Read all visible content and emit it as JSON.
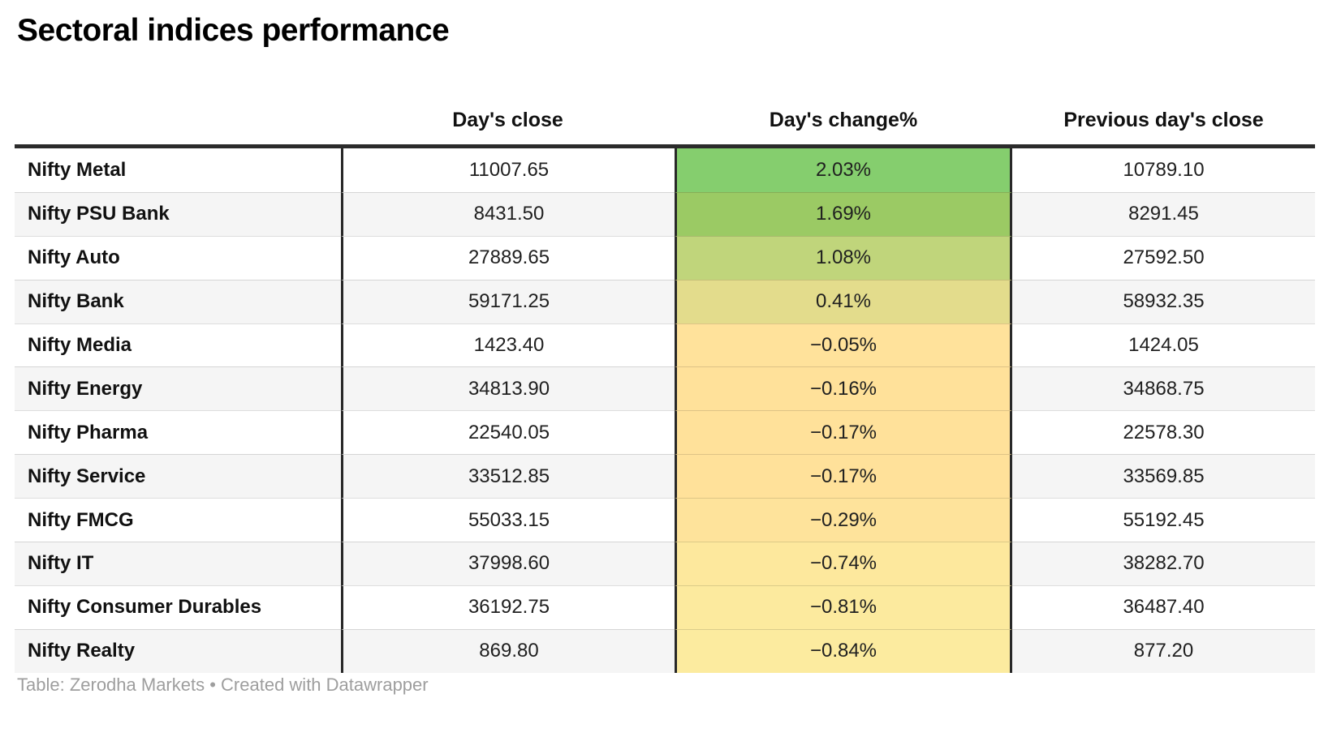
{
  "title": "Sectoral indices performance",
  "table": {
    "headers": {
      "index": "",
      "close": "Day's close",
      "change": "Day's change%",
      "prev_close": "Previous day's close"
    },
    "rows": [
      {
        "name": "Nifty Metal",
        "close": "11007.65",
        "change": "2.03%",
        "prev_close": "10789.10",
        "change_color": "#85ce6e"
      },
      {
        "name": "Nifty PSU Bank",
        "close": "8431.50",
        "change": "1.69%",
        "prev_close": "8291.45",
        "change_color": "#9bca64"
      },
      {
        "name": "Nifty Auto",
        "close": "27889.65",
        "change": "1.08%",
        "prev_close": "27592.50",
        "change_color": "#c0d57b"
      },
      {
        "name": "Nifty Bank",
        "close": "59171.25",
        "change": "0.41%",
        "prev_close": "58932.35",
        "change_color": "#e3dc8c"
      },
      {
        "name": "Nifty Media",
        "close": "1423.40",
        "change": "−0.05%",
        "prev_close": "1424.05",
        "change_color": "#ffe29b"
      },
      {
        "name": "Nifty Energy",
        "close": "34813.90",
        "change": "−0.16%",
        "prev_close": "34868.75",
        "change_color": "#ffe19a"
      },
      {
        "name": "Nifty Pharma",
        "close": "22540.05",
        "change": "−0.17%",
        "prev_close": "22578.30",
        "change_color": "#ffe19a"
      },
      {
        "name": "Nifty Service",
        "close": "33512.85",
        "change": "−0.17%",
        "prev_close": "33569.85",
        "change_color": "#ffe19a"
      },
      {
        "name": "Nifty FMCG",
        "close": "55033.15",
        "change": "−0.29%",
        "prev_close": "55192.45",
        "change_color": "#fee39b"
      },
      {
        "name": "Nifty IT",
        "close": "37998.60",
        "change": "−0.74%",
        "prev_close": "38282.70",
        "change_color": "#fde89d"
      },
      {
        "name": "Nifty Consumer Durables",
        "close": "36192.75",
        "change": "−0.81%",
        "prev_close": "36487.40",
        "change_color": "#fcea9e"
      },
      {
        "name": "Nifty Realty",
        "close": "869.80",
        "change": "−0.84%",
        "prev_close": "877.20",
        "change_color": "#fceb9f"
      }
    ]
  },
  "footer": "Table: Zerodha Markets • Created with Datawrapper",
  "colors": {
    "positive_max": "#85ce6e",
    "negative_min": "#fceb9f",
    "zebra_row": "#f5f5f5",
    "table_border": "#2b2b2b",
    "footer_text": "#9e9e9e"
  },
  "chart_data": {
    "type": "table",
    "title": "Sectoral indices performance",
    "columns": [
      "",
      "Day's close",
      "Day's change%",
      "Previous day's close"
    ],
    "rows": [
      [
        "Nifty Metal",
        11007.65,
        2.03,
        10789.1
      ],
      [
        "Nifty PSU Bank",
        8431.5,
        1.69,
        8291.45
      ],
      [
        "Nifty Auto",
        27889.65,
        1.08,
        27592.5
      ],
      [
        "Nifty Bank",
        59171.25,
        0.41,
        58932.35
      ],
      [
        "Nifty Media",
        1423.4,
        -0.05,
        1424.05
      ],
      [
        "Nifty Energy",
        34813.9,
        -0.16,
        34868.75
      ],
      [
        "Nifty Pharma",
        22540.05,
        -0.17,
        22578.3
      ],
      [
        "Nifty Service",
        33512.85,
        -0.17,
        33569.85
      ],
      [
        "Nifty FMCG",
        55033.15,
        -0.29,
        55192.45
      ],
      [
        "Nifty IT",
        37998.6,
        -0.74,
        38282.7
      ],
      [
        "Nifty Consumer Durables",
        36192.75,
        -0.81,
        36487.4
      ],
      [
        "Nifty Realty",
        869.8,
        -0.84,
        877.2
      ]
    ],
    "heatmap_column": "Day's change%",
    "heatmap_scale": "green (high positive) to pale yellow (negative)",
    "sort": "Day's change% descending",
    "footnote": "Table: Zerodha Markets • Created with Datawrapper"
  }
}
